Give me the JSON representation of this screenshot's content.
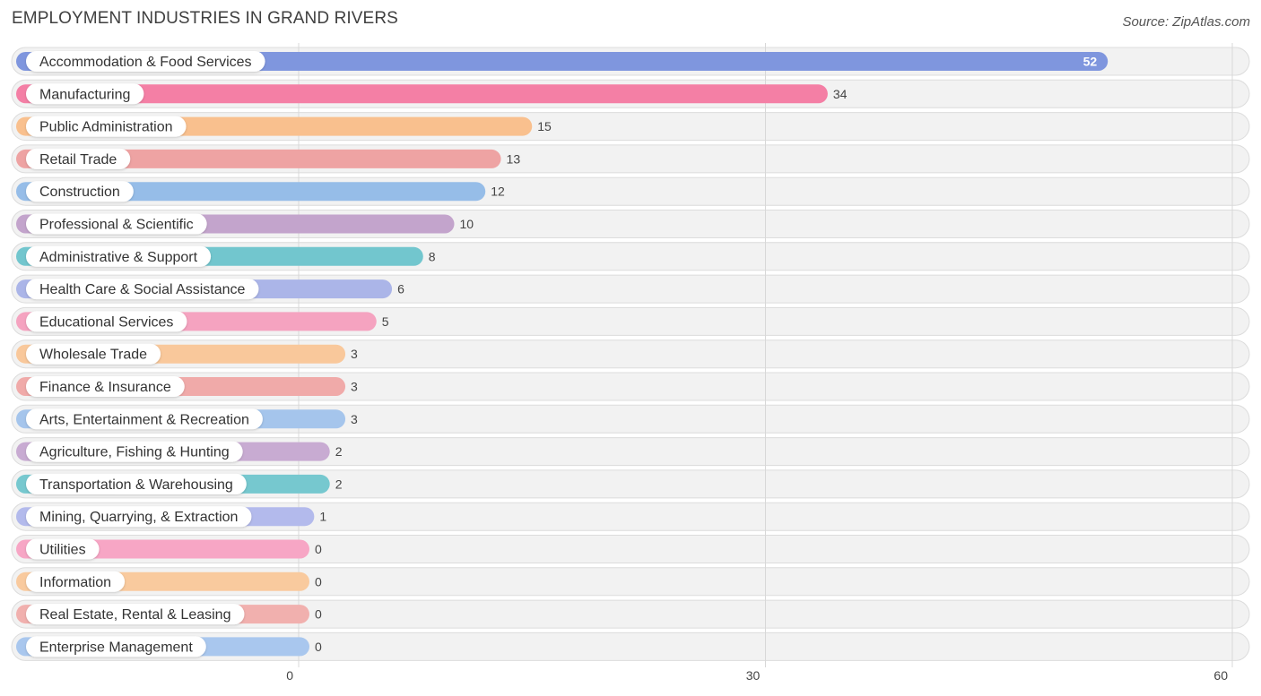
{
  "header": {
    "title": "EMPLOYMENT INDUSTRIES IN GRAND RIVERS",
    "source": "Source: ZipAtlas.com"
  },
  "chart_data": {
    "type": "bar",
    "orientation": "horizontal",
    "title": "EMPLOYMENT INDUSTRIES IN GRAND RIVERS",
    "xlim": [
      0,
      60
    ],
    "x_ticks": [
      0,
      30,
      60
    ],
    "grid": true,
    "categories": [
      "Accommodation & Food Services",
      "Manufacturing",
      "Public Administration",
      "Retail Trade",
      "Construction",
      "Professional & Scientific",
      "Administrative & Support",
      "Health Care & Social Assistance",
      "Educational Services",
      "Wholesale Trade",
      "Finance & Insurance",
      "Arts, Entertainment & Recreation",
      "Agriculture, Fishing & Hunting",
      "Transportation & Warehousing",
      "Mining, Quarrying, & Extraction",
      "Utilities",
      "Information",
      "Real Estate, Rental & Leasing",
      "Enterprise Management"
    ],
    "values": [
      52,
      34,
      15,
      13,
      12,
      10,
      8,
      6,
      5,
      3,
      3,
      3,
      2,
      2,
      1,
      0,
      0,
      0,
      0
    ],
    "colors": [
      "#7f96de",
      "#f47fa5",
      "#f9c08e",
      "#eea3a3",
      "#96bde8",
      "#c3a4cc",
      "#72c6ce",
      "#abb5e8",
      "#f5a3c0",
      "#f9c89b",
      "#f0aaa9",
      "#a5c5ec",
      "#c8abd2",
      "#76c8cf",
      "#b3baec",
      "#f7a6c5",
      "#f9ca9e",
      "#f1b0ae",
      "#a9c7ee"
    ]
  }
}
